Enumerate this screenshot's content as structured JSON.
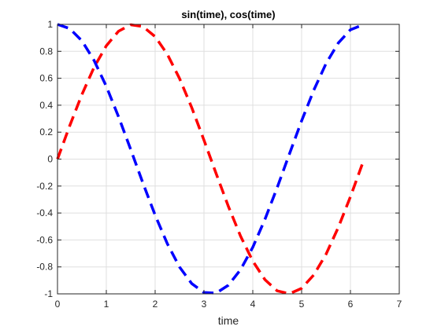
{
  "chart_data": {
    "type": "line",
    "title": "sin(time), cos(time)",
    "xlabel": "time",
    "ylabel": "",
    "xlim": [
      0,
      7
    ],
    "ylim": [
      -1,
      1
    ],
    "xticks": [
      0,
      1,
      2,
      3,
      4,
      5,
      6,
      7
    ],
    "yticks": [
      -1,
      -0.8,
      -0.6,
      -0.4,
      -0.2,
      0,
      0.2,
      0.4,
      0.6,
      0.8,
      1
    ],
    "xtick_labels": [
      "0",
      "1",
      "2",
      "3",
      "4",
      "5",
      "6",
      "7"
    ],
    "ytick_labels": [
      "-1",
      "-0.8",
      "-0.6",
      "-0.4",
      "-0.2",
      "0",
      "0.2",
      "0.4",
      "0.6",
      "0.8",
      "1"
    ],
    "grid": true,
    "series": [
      {
        "color": "#ff0000",
        "style": "dashed",
        "x": [
          0,
          0.25,
          0.5,
          0.75,
          1,
          1.25,
          1.5,
          1.75,
          2,
          2.25,
          2.5,
          2.75,
          3,
          3.25,
          3.5,
          3.75,
          4,
          4.25,
          4.5,
          4.75,
          5,
          5.25,
          5.5,
          5.75,
          6,
          6.28
        ],
        "y": [
          0,
          0.247,
          0.479,
          0.682,
          0.841,
          0.949,
          0.997,
          0.984,
          0.909,
          0.778,
          0.598,
          0.382,
          0.141,
          -0.108,
          -0.351,
          -0.572,
          -0.757,
          -0.895,
          -0.978,
          -0.999,
          -0.959,
          -0.859,
          -0.706,
          -0.508,
          -0.279,
          0
        ]
      },
      {
        "color": "#0000ff",
        "style": "dashed",
        "x": [
          0,
          0.25,
          0.5,
          0.75,
          1,
          1.25,
          1.5,
          1.75,
          2,
          2.25,
          2.5,
          2.75,
          3,
          3.25,
          3.5,
          3.75,
          4,
          4.25,
          4.5,
          4.75,
          5,
          5.25,
          5.5,
          5.75,
          6,
          6.28
        ],
        "y": [
          1,
          0.969,
          0.878,
          0.732,
          0.54,
          0.315,
          0.071,
          -0.178,
          -0.416,
          -0.628,
          -0.801,
          -0.924,
          -0.99,
          -0.994,
          -0.936,
          -0.82,
          -0.654,
          -0.446,
          -0.211,
          0.038,
          0.284,
          0.512,
          0.709,
          0.861,
          0.96,
          1
        ]
      }
    ]
  }
}
